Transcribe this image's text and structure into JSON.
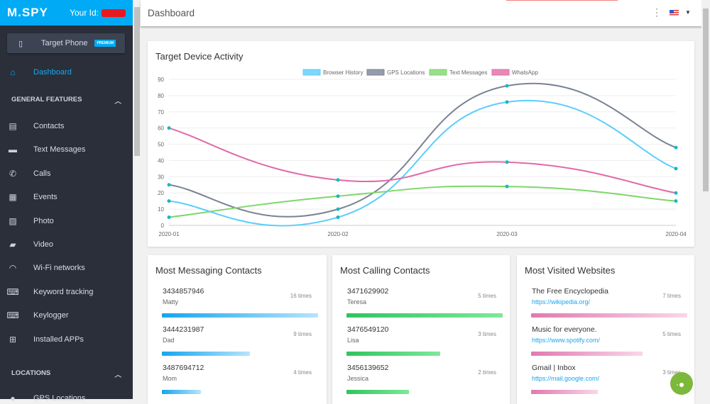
{
  "sidebar": {
    "logo": "M.SPY",
    "your_id_label": "Your Id:",
    "target": {
      "label": "Target Phone",
      "badge": "PREMIUM"
    },
    "dashboard": "Dashboard",
    "sections": [
      {
        "label": "GENERAL FEATURES"
      },
      {
        "label": "LOCATIONS"
      }
    ],
    "items": [
      {
        "label": "Contacts",
        "icon": "clipboard-icon"
      },
      {
        "label": "Text Messages",
        "icon": "message-icon"
      },
      {
        "label": "Calls",
        "icon": "phone-icon"
      },
      {
        "label": "Events",
        "icon": "calendar-icon"
      },
      {
        "label": "Photo",
        "icon": "image-icon"
      },
      {
        "label": "Video",
        "icon": "video-icon"
      },
      {
        "label": "Wi-Fi networks",
        "icon": "wifi-icon"
      },
      {
        "label": "Keyword tracking",
        "icon": "keyboard-icon"
      },
      {
        "label": "Keylogger",
        "icon": "keyboard-icon"
      },
      {
        "label": "Installed APPs",
        "icon": "apps-grid-icon"
      }
    ],
    "locations_items": [
      {
        "label": "GPS Locations",
        "icon": "pin-icon"
      }
    ]
  },
  "header": {
    "title": "Dashboard"
  },
  "chart_data": {
    "type": "line",
    "title": "Target Device Activity",
    "categories": [
      "2020-01",
      "2020-02",
      "2020-03",
      "2020-04"
    ],
    "ylim": [
      0,
      90
    ],
    "yticks": [
      0,
      10,
      20,
      30,
      40,
      50,
      60,
      70,
      80,
      90
    ],
    "grid": true,
    "legend": "top",
    "series": [
      {
        "name": "Browser History",
        "color": "#5ccdfb",
        "values": [
          15,
          5,
          76,
          35
        ]
      },
      {
        "name": "GPS Locations",
        "color": "#7a8393",
        "values": [
          25,
          10,
          86,
          48
        ]
      },
      {
        "name": "Text Messages",
        "color": "#7fd66a",
        "values": [
          5,
          18,
          24,
          15
        ]
      },
      {
        "name": "WhatsApp",
        "color": "#e16aa8",
        "values": [
          60,
          28,
          39,
          20
        ]
      }
    ]
  },
  "messaging": {
    "title": "Most Messaging Contacts",
    "items": [
      {
        "number": "3434857946",
        "name": "Matty",
        "times": "16 times",
        "value": 16
      },
      {
        "number": "3444231987",
        "name": "Dad",
        "times": "9 times",
        "value": 9
      },
      {
        "number": "3487694712",
        "name": "Mom",
        "times": "4 times",
        "value": 4
      }
    ]
  },
  "calling": {
    "title": "Most Calling Contacts",
    "items": [
      {
        "number": "3471629902",
        "name": "Teresa",
        "times": "5 times",
        "value": 5
      },
      {
        "number": "3476549120",
        "name": "Lisa",
        "times": "3 times",
        "value": 3
      },
      {
        "number": "3456139652",
        "name": "Jessica",
        "times": "2 times",
        "value": 2
      }
    ]
  },
  "websites": {
    "title": "Most Visited Websites",
    "items": [
      {
        "title": "The Free Encyclopedia",
        "url": "https://wikipedia.org/",
        "times": "7 times",
        "value": 7
      },
      {
        "title": "Music for everyone.",
        "url": "https://www.spotify.com/",
        "times": "5 times",
        "value": 5
      },
      {
        "title": "Gmail | Inbox",
        "url": "https://mail.google.com/",
        "times": "3 times",
        "value": 3
      }
    ]
  }
}
